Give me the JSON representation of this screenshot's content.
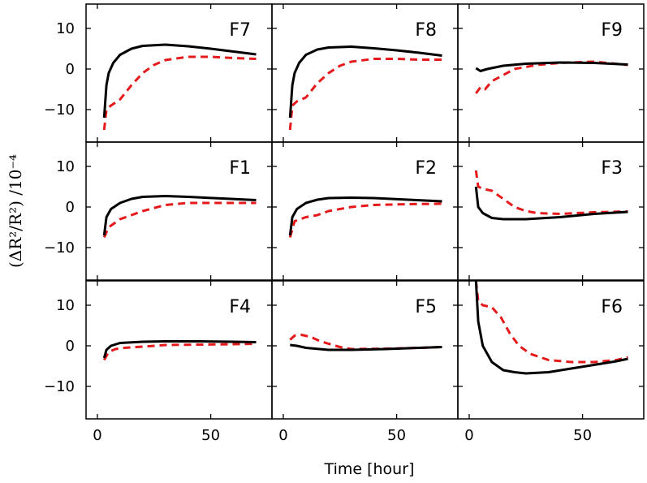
{
  "chart_data": {
    "type": "line",
    "layout": "3x3 grid of panels with shared axes",
    "xlabel": "Time [hour]",
    "ylabel": "(ΔR²/R²) /10⁻⁴",
    "xlim": [
      -5,
      77
    ],
    "ylim": [
      -18,
      16
    ],
    "xticks": [
      0,
      50
    ],
    "xtick_labels": [
      "0",
      "50"
    ],
    "yticks": [
      -10,
      0,
      10
    ],
    "ytick_labels": [
      "−10",
      "0",
      "10"
    ],
    "series_styles": {
      "solid": {
        "color": "#000000",
        "dash": "none",
        "width": 3
      },
      "dashed": {
        "color": "#e41a1c",
        "dash": "9,6",
        "width": 3
      }
    },
    "panels": [
      {
        "label": "F7",
        "solid": [
          [
            3,
            -12
          ],
          [
            4,
            -4
          ],
          [
            5,
            -1
          ],
          [
            7,
            1.5
          ],
          [
            10,
            3.5
          ],
          [
            15,
            5
          ],
          [
            20,
            5.7
          ],
          [
            30,
            6
          ],
          [
            40,
            5.6
          ],
          [
            50,
            5
          ],
          [
            60,
            4.3
          ],
          [
            70,
            3.6
          ]
        ],
        "dashed": [
          [
            3,
            -15
          ],
          [
            4,
            -10
          ],
          [
            6,
            -9
          ],
          [
            10,
            -7.5
          ],
          [
            15,
            -4
          ],
          [
            20,
            -1
          ],
          [
            25,
            1
          ],
          [
            30,
            2.2
          ],
          [
            40,
            3
          ],
          [
            50,
            3
          ],
          [
            60,
            2.7
          ],
          [
            70,
            2.5
          ]
        ]
      },
      {
        "label": "F8",
        "solid": [
          [
            3,
            -12
          ],
          [
            4,
            -4
          ],
          [
            5,
            -1
          ],
          [
            7,
            1.5
          ],
          [
            10,
            3.5
          ],
          [
            15,
            4.8
          ],
          [
            20,
            5.3
          ],
          [
            30,
            5.5
          ],
          [
            40,
            5.1
          ],
          [
            50,
            4.6
          ],
          [
            60,
            4
          ],
          [
            70,
            3.3
          ]
        ],
        "dashed": [
          [
            3,
            -15
          ],
          [
            4,
            -9
          ],
          [
            6,
            -8
          ],
          [
            10,
            -7
          ],
          [
            15,
            -3.5
          ],
          [
            20,
            -1
          ],
          [
            25,
            0.8
          ],
          [
            30,
            1.8
          ],
          [
            40,
            2.5
          ],
          [
            50,
            2.5
          ],
          [
            60,
            2.3
          ],
          [
            70,
            2.3
          ]
        ]
      },
      {
        "label": "F9",
        "solid": [
          [
            3,
            0.2
          ],
          [
            5,
            -0.5
          ],
          [
            8,
            0
          ],
          [
            15,
            0.8
          ],
          [
            25,
            1.3
          ],
          [
            40,
            1.6
          ],
          [
            55,
            1.5
          ],
          [
            70,
            1.1
          ]
        ],
        "dashed": [
          [
            3,
            -6
          ],
          [
            5,
            -4.5
          ],
          [
            7,
            -5
          ],
          [
            10,
            -3
          ],
          [
            15,
            -1.5
          ],
          [
            20,
            0
          ],
          [
            30,
            1
          ],
          [
            40,
            1.5
          ],
          [
            55,
            1.8
          ],
          [
            70,
            1
          ]
        ]
      },
      {
        "label": "F1",
        "solid": [
          [
            3,
            -7
          ],
          [
            4,
            -2.5
          ],
          [
            6,
            -0.5
          ],
          [
            10,
            1
          ],
          [
            15,
            2
          ],
          [
            20,
            2.5
          ],
          [
            30,
            2.7
          ],
          [
            40,
            2.5
          ],
          [
            55,
            2.1
          ],
          [
            70,
            1.7
          ]
        ],
        "dashed": [
          [
            3,
            -7.5
          ],
          [
            5,
            -5
          ],
          [
            10,
            -3
          ],
          [
            15,
            -2
          ],
          [
            20,
            -1
          ],
          [
            30,
            0.5
          ],
          [
            40,
            1
          ],
          [
            55,
            1
          ],
          [
            70,
            1
          ]
        ]
      },
      {
        "label": "F2",
        "solid": [
          [
            3,
            -7
          ],
          [
            4,
            -2.5
          ],
          [
            6,
            -0.5
          ],
          [
            10,
            1
          ],
          [
            15,
            1.8
          ],
          [
            20,
            2.2
          ],
          [
            30,
            2.3
          ],
          [
            40,
            2.2
          ],
          [
            55,
            1.8
          ],
          [
            70,
            1.4
          ]
        ],
        "dashed": [
          [
            3,
            -7.5
          ],
          [
            5,
            -3.5
          ],
          [
            10,
            -2.5
          ],
          [
            15,
            -2
          ],
          [
            20,
            -1
          ],
          [
            30,
            0
          ],
          [
            40,
            0.5
          ],
          [
            55,
            0.7
          ],
          [
            70,
            0.8
          ]
        ]
      },
      {
        "label": "F3",
        "solid": [
          [
            3,
            5
          ],
          [
            4,
            0
          ],
          [
            6,
            -1.5
          ],
          [
            10,
            -2.7
          ],
          [
            15,
            -3
          ],
          [
            25,
            -3
          ],
          [
            40,
            -2.5
          ],
          [
            55,
            -1.7
          ],
          [
            70,
            -1.2
          ]
        ],
        "dashed": [
          [
            3,
            9
          ],
          [
            4,
            5
          ],
          [
            6,
            4.5
          ],
          [
            10,
            4
          ],
          [
            15,
            2
          ],
          [
            20,
            0
          ],
          [
            25,
            -1
          ],
          [
            30,
            -1.5
          ],
          [
            40,
            -1.7
          ],
          [
            55,
            -1.3
          ],
          [
            70,
            -1.1
          ]
        ]
      },
      {
        "label": "F4",
        "solid": [
          [
            3,
            -3
          ],
          [
            4,
            -1
          ],
          [
            6,
            0
          ],
          [
            10,
            0.7
          ],
          [
            20,
            1
          ],
          [
            30,
            1.1
          ],
          [
            45,
            1.1
          ],
          [
            60,
            1
          ],
          [
            70,
            0.9
          ]
        ],
        "dashed": [
          [
            3,
            -3.5
          ],
          [
            5,
            -1.5
          ],
          [
            8,
            -0.8
          ],
          [
            12,
            -0.5
          ],
          [
            20,
            -0.2
          ],
          [
            30,
            0.2
          ],
          [
            45,
            0.3
          ],
          [
            60,
            0.4
          ],
          [
            70,
            0.5
          ]
        ]
      },
      {
        "label": "F5",
        "solid": [
          [
            3,
            0.2
          ],
          [
            6,
            0
          ],
          [
            10,
            -0.5
          ],
          [
            20,
            -1
          ],
          [
            30,
            -1
          ],
          [
            45,
            -0.8
          ],
          [
            60,
            -0.5
          ],
          [
            70,
            -0.3
          ]
        ],
        "dashed": [
          [
            3,
            1.5
          ],
          [
            5,
            2.5
          ],
          [
            8,
            2.7
          ],
          [
            12,
            2.2
          ],
          [
            16,
            1.2
          ],
          [
            20,
            0.5
          ],
          [
            25,
            -0.3
          ],
          [
            30,
            -0.8
          ],
          [
            45,
            -0.7
          ],
          [
            60,
            -0.5
          ],
          [
            70,
            -0.3
          ]
        ]
      },
      {
        "label": "F6",
        "solid": [
          [
            3,
            16
          ],
          [
            4,
            6
          ],
          [
            6,
            0
          ],
          [
            10,
            -4
          ],
          [
            15,
            -6
          ],
          [
            20,
            -6.5
          ],
          [
            25,
            -6.8
          ],
          [
            35,
            -6.5
          ],
          [
            45,
            -5.6
          ],
          [
            55,
            -4.7
          ],
          [
            65,
            -3.8
          ],
          [
            70,
            -3.2
          ]
        ],
        "dashed": [
          [
            3,
            16
          ],
          [
            4,
            11
          ],
          [
            6,
            10
          ],
          [
            10,
            9.5
          ],
          [
            14,
            7
          ],
          [
            18,
            3
          ],
          [
            22,
            0
          ],
          [
            27,
            -2
          ],
          [
            35,
            -3.5
          ],
          [
            45,
            -4
          ],
          [
            55,
            -4
          ],
          [
            65,
            -3.5
          ],
          [
            70,
            -2.8
          ]
        ]
      }
    ]
  }
}
